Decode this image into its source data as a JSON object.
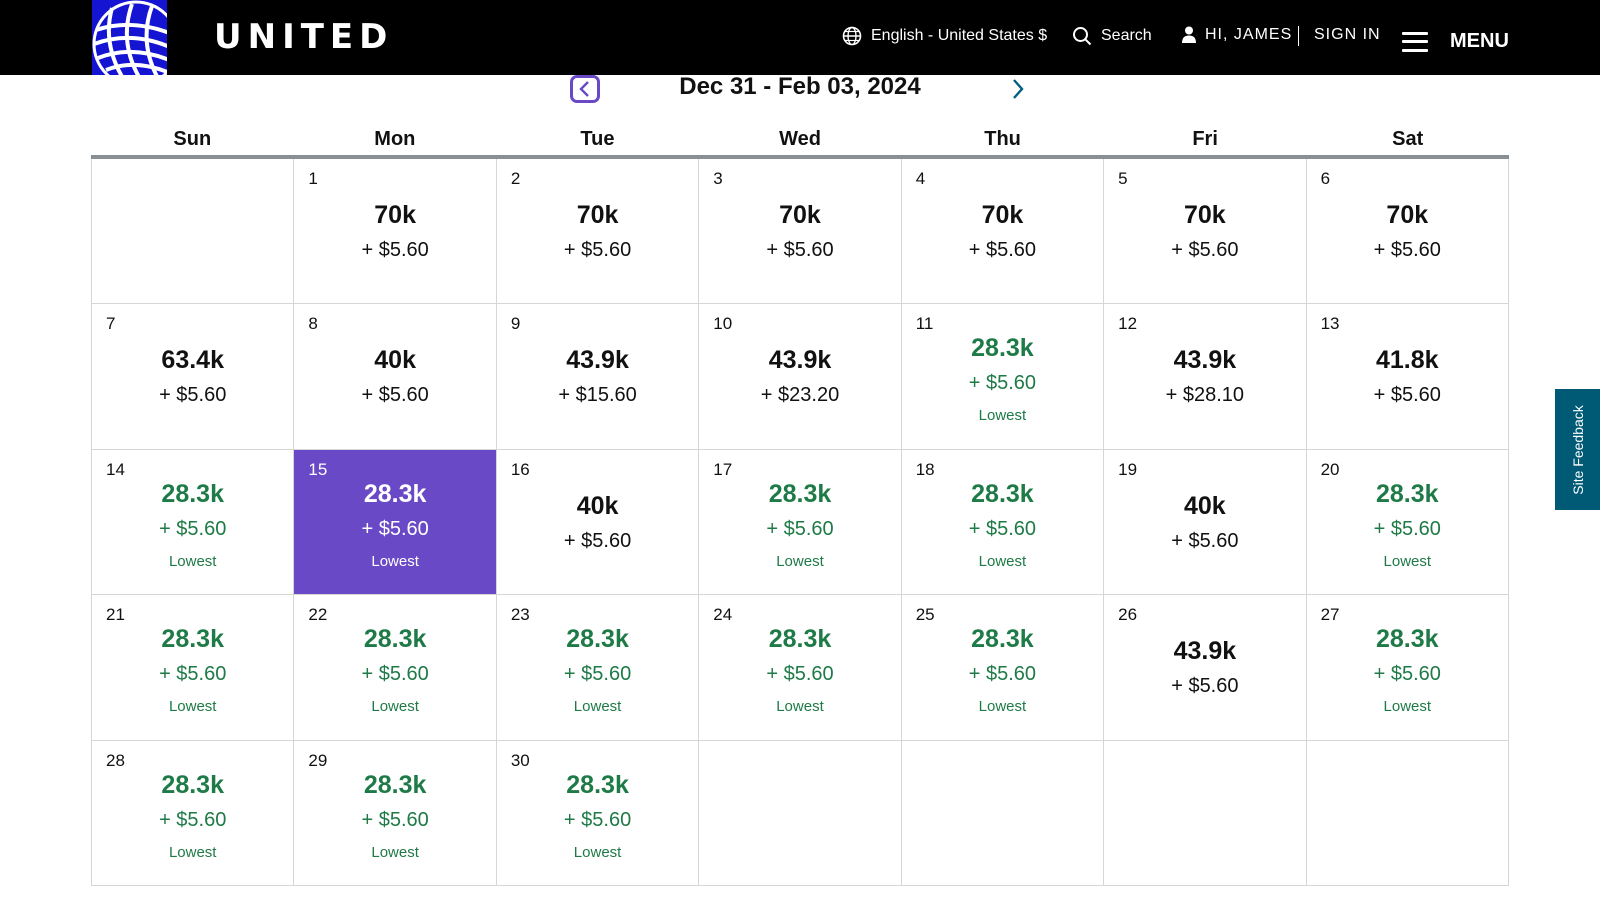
{
  "header": {
    "brand": "UNITED",
    "language": "English - United States $",
    "search_label": "Search",
    "greeting": "HI, JAMES",
    "sign_in": "SIGN IN",
    "menu_label": "MENU",
    "colors": {
      "bar": "#000000",
      "logo_bg": "#1414d2"
    }
  },
  "date_nav": {
    "range": "Dec 31 - Feb 03, 2024",
    "prev_icon": "chevron-left-icon",
    "next_icon": "chevron-right-icon"
  },
  "weekdays": [
    "Sun",
    "Mon",
    "Tue",
    "Wed",
    "Thu",
    "Fri",
    "Sat"
  ],
  "calendar": {
    "colors": {
      "lowest": "#1e7a46",
      "selected": "#6a49c6"
    },
    "cells": [
      {
        "day": "",
        "miles": "",
        "tax": "",
        "tag": "",
        "state": "empty"
      },
      {
        "day": "1",
        "miles": "70k",
        "tax": "+ $5.60",
        "tag": "",
        "state": "normal"
      },
      {
        "day": "2",
        "miles": "70k",
        "tax": "+ $5.60",
        "tag": "",
        "state": "normal"
      },
      {
        "day": "3",
        "miles": "70k",
        "tax": "+ $5.60",
        "tag": "",
        "state": "normal"
      },
      {
        "day": "4",
        "miles": "70k",
        "tax": "+ $5.60",
        "tag": "",
        "state": "normal"
      },
      {
        "day": "5",
        "miles": "70k",
        "tax": "+ $5.60",
        "tag": "",
        "state": "normal"
      },
      {
        "day": "6",
        "miles": "70k",
        "tax": "+ $5.60",
        "tag": "",
        "state": "normal"
      },
      {
        "day": "7",
        "miles": "63.4k",
        "tax": "+ $5.60",
        "tag": "",
        "state": "normal"
      },
      {
        "day": "8",
        "miles": "40k",
        "tax": "+ $5.60",
        "tag": "",
        "state": "normal"
      },
      {
        "day": "9",
        "miles": "43.9k",
        "tax": "+ $15.60",
        "tag": "",
        "state": "normal"
      },
      {
        "day": "10",
        "miles": "43.9k",
        "tax": "+ $23.20",
        "tag": "",
        "state": "normal"
      },
      {
        "day": "11",
        "miles": "28.3k",
        "tax": "+ $5.60",
        "tag": "Lowest",
        "state": "low"
      },
      {
        "day": "12",
        "miles": "43.9k",
        "tax": "+ $28.10",
        "tag": "",
        "state": "normal"
      },
      {
        "day": "13",
        "miles": "41.8k",
        "tax": "+ $5.60",
        "tag": "",
        "state": "normal"
      },
      {
        "day": "14",
        "miles": "28.3k",
        "tax": "+ $5.60",
        "tag": "Lowest",
        "state": "low"
      },
      {
        "day": "15",
        "miles": "28.3k",
        "tax": "+ $5.60",
        "tag": "Lowest",
        "state": "low sel"
      },
      {
        "day": "16",
        "miles": "40k",
        "tax": "+ $5.60",
        "tag": "",
        "state": "normal"
      },
      {
        "day": "17",
        "miles": "28.3k",
        "tax": "+ $5.60",
        "tag": "Lowest",
        "state": "low"
      },
      {
        "day": "18",
        "miles": "28.3k",
        "tax": "+ $5.60",
        "tag": "Lowest",
        "state": "low"
      },
      {
        "day": "19",
        "miles": "40k",
        "tax": "+ $5.60",
        "tag": "",
        "state": "normal"
      },
      {
        "day": "20",
        "miles": "28.3k",
        "tax": "+ $5.60",
        "tag": "Lowest",
        "state": "low"
      },
      {
        "day": "21",
        "miles": "28.3k",
        "tax": "+ $5.60",
        "tag": "Lowest",
        "state": "low"
      },
      {
        "day": "22",
        "miles": "28.3k",
        "tax": "+ $5.60",
        "tag": "Lowest",
        "state": "low"
      },
      {
        "day": "23",
        "miles": "28.3k",
        "tax": "+ $5.60",
        "tag": "Lowest",
        "state": "low"
      },
      {
        "day": "24",
        "miles": "28.3k",
        "tax": "+ $5.60",
        "tag": "Lowest",
        "state": "low"
      },
      {
        "day": "25",
        "miles": "28.3k",
        "tax": "+ $5.60",
        "tag": "Lowest",
        "state": "low"
      },
      {
        "day": "26",
        "miles": "43.9k",
        "tax": "+ $5.60",
        "tag": "",
        "state": "normal"
      },
      {
        "day": "27",
        "miles": "28.3k",
        "tax": "+ $5.60",
        "tag": "Lowest",
        "state": "low"
      },
      {
        "day": "28",
        "miles": "28.3k",
        "tax": "+ $5.60",
        "tag": "Lowest",
        "state": "low"
      },
      {
        "day": "29",
        "miles": "28.3k",
        "tax": "+ $5.60",
        "tag": "Lowest",
        "state": "low"
      },
      {
        "day": "30",
        "miles": "28.3k",
        "tax": "+ $5.60",
        "tag": "Lowest",
        "state": "low"
      },
      {
        "day": "",
        "miles": "",
        "tax": "",
        "tag": "",
        "state": "empty"
      },
      {
        "day": "",
        "miles": "",
        "tax": "",
        "tag": "",
        "state": "empty"
      },
      {
        "day": "",
        "miles": "",
        "tax": "",
        "tag": "",
        "state": "empty"
      },
      {
        "day": "",
        "miles": "",
        "tax": "",
        "tag": "",
        "state": "empty"
      }
    ]
  },
  "feedback": {
    "label": "Site Feedback",
    "color": "#005a76"
  }
}
